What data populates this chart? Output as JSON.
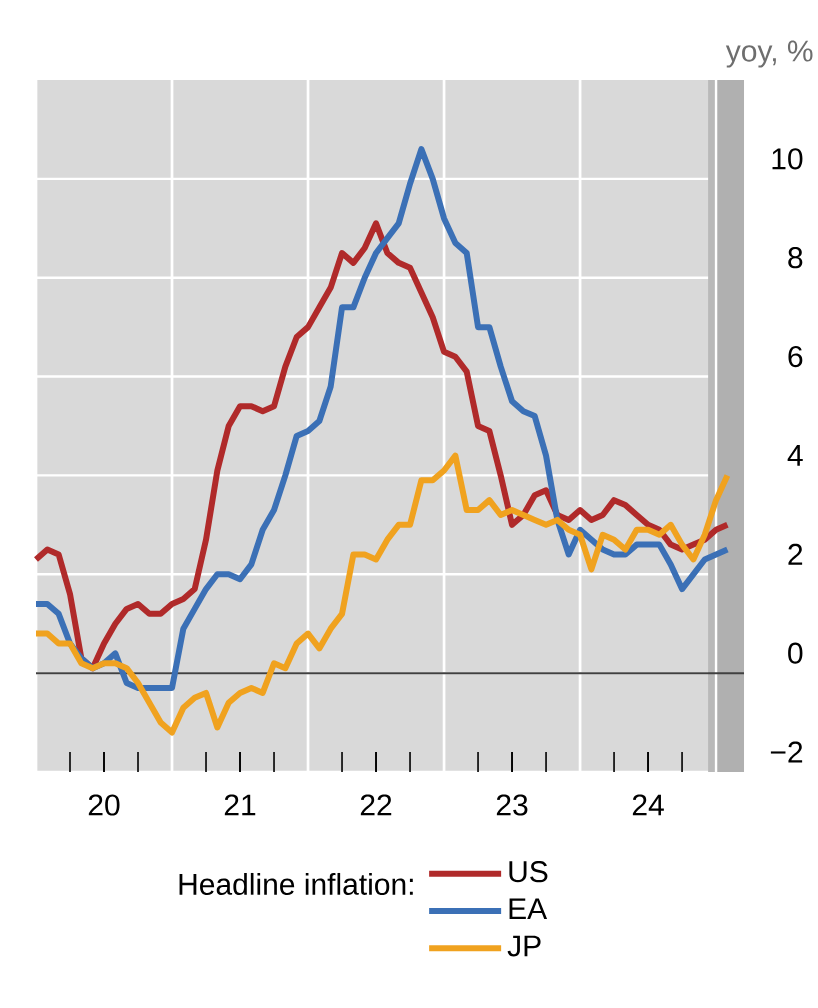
{
  "chart_data": {
    "type": "line",
    "ylabel": "yoy, %",
    "legend_title": "Headline inflation:",
    "x": [
      "2020-01",
      "2020-02",
      "2020-03",
      "2020-04",
      "2020-05",
      "2020-06",
      "2020-07",
      "2020-08",
      "2020-09",
      "2020-10",
      "2020-11",
      "2020-12",
      "2021-01",
      "2021-02",
      "2021-03",
      "2021-04",
      "2021-05",
      "2021-06",
      "2021-07",
      "2021-08",
      "2021-09",
      "2021-10",
      "2021-11",
      "2021-12",
      "2022-01",
      "2022-02",
      "2022-03",
      "2022-04",
      "2022-05",
      "2022-06",
      "2022-07",
      "2022-08",
      "2022-09",
      "2022-10",
      "2022-11",
      "2022-12",
      "2023-01",
      "2023-02",
      "2023-03",
      "2023-04",
      "2023-05",
      "2023-06",
      "2023-07",
      "2023-08",
      "2023-09",
      "2023-10",
      "2023-11",
      "2023-12",
      "2024-01",
      "2024-02",
      "2024-03",
      "2024-04",
      "2024-05",
      "2024-06",
      "2024-07",
      "2024-08",
      "2024-09",
      "2024-10",
      "2024-11",
      "2024-12",
      "2025-01",
      "2025-02"
    ],
    "series": [
      {
        "name": "US",
        "color": "#b02a2a",
        "values": [
          2.3,
          2.5,
          2.4,
          1.6,
          0.3,
          0.1,
          0.6,
          1.0,
          1.3,
          1.4,
          1.2,
          1.2,
          1.4,
          1.5,
          1.7,
          2.7,
          4.1,
          5.0,
          5.4,
          5.4,
          5.3,
          5.4,
          6.2,
          6.8,
          7.0,
          7.4,
          7.8,
          8.5,
          8.3,
          8.6,
          9.1,
          8.5,
          8.3,
          8.2,
          7.7,
          7.2,
          6.5,
          6.4,
          6.1,
          5.0,
          4.9,
          4.0,
          3.0,
          3.2,
          3.6,
          3.7,
          3.2,
          3.1,
          3.3,
          3.1,
          3.2,
          3.5,
          3.4,
          3.2,
          3.0,
          2.9,
          2.6,
          2.5,
          2.6,
          2.7,
          2.9,
          3.0
        ]
      },
      {
        "name": "EA",
        "color": "#3b70b6",
        "values": [
          1.4,
          1.4,
          1.2,
          0.6,
          0.3,
          0.1,
          0.2,
          0.4,
          -0.2,
          -0.3,
          -0.3,
          -0.3,
          -0.3,
          0.9,
          1.3,
          1.7,
          2.0,
          2.0,
          1.9,
          2.2,
          2.9,
          3.3,
          4.0,
          4.8,
          4.9,
          5.1,
          5.8,
          7.4,
          7.4,
          8.0,
          8.5,
          8.8,
          9.1,
          9.9,
          10.6,
          10.0,
          9.2,
          8.7,
          8.5,
          7.0,
          7.0,
          6.2,
          5.5,
          5.3,
          5.2,
          4.4,
          3.1,
          2.4,
          2.9,
          2.7,
          2.5,
          2.4,
          2.4,
          2.6,
          2.6,
          2.6,
          2.2,
          1.7,
          2.0,
          2.3,
          2.4,
          2.5
        ]
      },
      {
        "name": "JP",
        "color": "#f0a21f",
        "values": [
          0.8,
          0.8,
          0.6,
          0.6,
          0.2,
          0.1,
          0.2,
          0.2,
          0.1,
          -0.2,
          -0.6,
          -1.0,
          -1.2,
          -0.7,
          -0.5,
          -0.4,
          -1.1,
          -0.6,
          -0.4,
          -0.3,
          -0.4,
          0.2,
          0.1,
          0.6,
          0.8,
          0.5,
          0.9,
          1.2,
          2.4,
          2.4,
          2.3,
          2.7,
          3.0,
          3.0,
          3.9,
          3.9,
          4.1,
          4.4,
          3.3,
          3.3,
          3.5,
          3.2,
          3.3,
          3.2,
          3.1,
          3.0,
          3.1,
          2.9,
          2.8,
          2.1,
          2.8,
          2.7,
          2.5,
          2.9,
          2.9,
          2.8,
          3.0,
          2.6,
          2.3,
          2.8,
          3.5,
          4.0
        ]
      }
    ],
    "xlim": [
      "2020-01",
      "2025-03-15"
    ],
    "xticks": [
      {
        "value": "2020-01",
        "label": null
      },
      {
        "value": "2021-01",
        "label": null
      },
      {
        "value": "2022-01",
        "label": null
      },
      {
        "value": "2023-01",
        "label": null
      },
      {
        "value": "2024-01",
        "label": null
      },
      {
        "value": "2025-01",
        "label": null
      },
      {
        "value": "2020-07",
        "label": "20"
      },
      {
        "value": "2021-07",
        "label": "21"
      },
      {
        "value": "2022-07",
        "label": "22"
      },
      {
        "value": "2023-07",
        "label": "23"
      },
      {
        "value": "2024-07",
        "label": "24"
      }
    ],
    "ylim": [
      -2,
      12
    ],
    "yticks": [
      {
        "value": -2,
        "label": "−2"
      },
      0,
      2,
      4,
      6,
      8,
      10
    ],
    "grid": true,
    "legend": "bottom",
    "line_style": "solid",
    "marker": "none",
    "ref_lines": [
      {
        "axis": "y",
        "value": 0,
        "color": "#404040"
      }
    ],
    "bands": [
      {
        "axis": "x",
        "from": "2024-12-10",
        "to": "2025-01",
        "color": "#b9b9b9"
      },
      {
        "axis": "x",
        "from": "2025-01",
        "to": "2025-03-15",
        "color": "#b0b0b0"
      }
    ]
  }
}
